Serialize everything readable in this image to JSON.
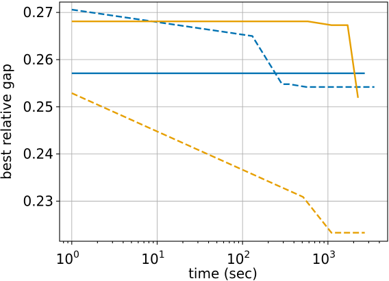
{
  "chart_data": {
    "type": "line",
    "xlabel": "time (sec)",
    "ylabel": "best relative gap",
    "xscale": "log",
    "xlim": [
      0.72,
      5000
    ],
    "ylim": [
      0.2215,
      0.2722
    ],
    "grid": true,
    "x_ticks": [
      {
        "value": 1,
        "base": "10",
        "exp": "0"
      },
      {
        "value": 10,
        "base": "10",
        "exp": "1"
      },
      {
        "value": 100,
        "base": "10",
        "exp": "2"
      },
      {
        "value": 1000,
        "base": "10",
        "exp": "3"
      }
    ],
    "y_ticks": [
      {
        "value": 0.23,
        "label": "0.23"
      },
      {
        "value": 0.24,
        "label": "0.24"
      },
      {
        "value": 0.25,
        "label": "0.25"
      },
      {
        "value": 0.26,
        "label": "0.26"
      },
      {
        "value": 0.27,
        "label": "0.27"
      }
    ],
    "series": [
      {
        "color": "#0072B2",
        "dash": "solid",
        "points": [
          [
            1,
            0.2571
          ],
          [
            2700,
            0.2571
          ]
        ]
      },
      {
        "color": "#0072B2",
        "dash": "dashed",
        "points": [
          [
            1,
            0.2706
          ],
          [
            130,
            0.265
          ],
          [
            290,
            0.2548
          ],
          [
            350,
            0.2548
          ],
          [
            560,
            0.2542
          ],
          [
            3500,
            0.2542
          ]
        ]
      },
      {
        "color": "#E69F00",
        "dash": "solid",
        "points": [
          [
            1,
            0.2681
          ],
          [
            580,
            0.2681
          ],
          [
            1100,
            0.2673
          ],
          [
            1700,
            0.2673
          ],
          [
            2250,
            0.2519
          ]
        ]
      },
      {
        "color": "#E69F00",
        "dash": "dashed",
        "points": [
          [
            1,
            0.2529
          ],
          [
            510,
            0.2309
          ],
          [
            1100,
            0.2233
          ],
          [
            2700,
            0.2233
          ]
        ]
      }
    ]
  }
}
